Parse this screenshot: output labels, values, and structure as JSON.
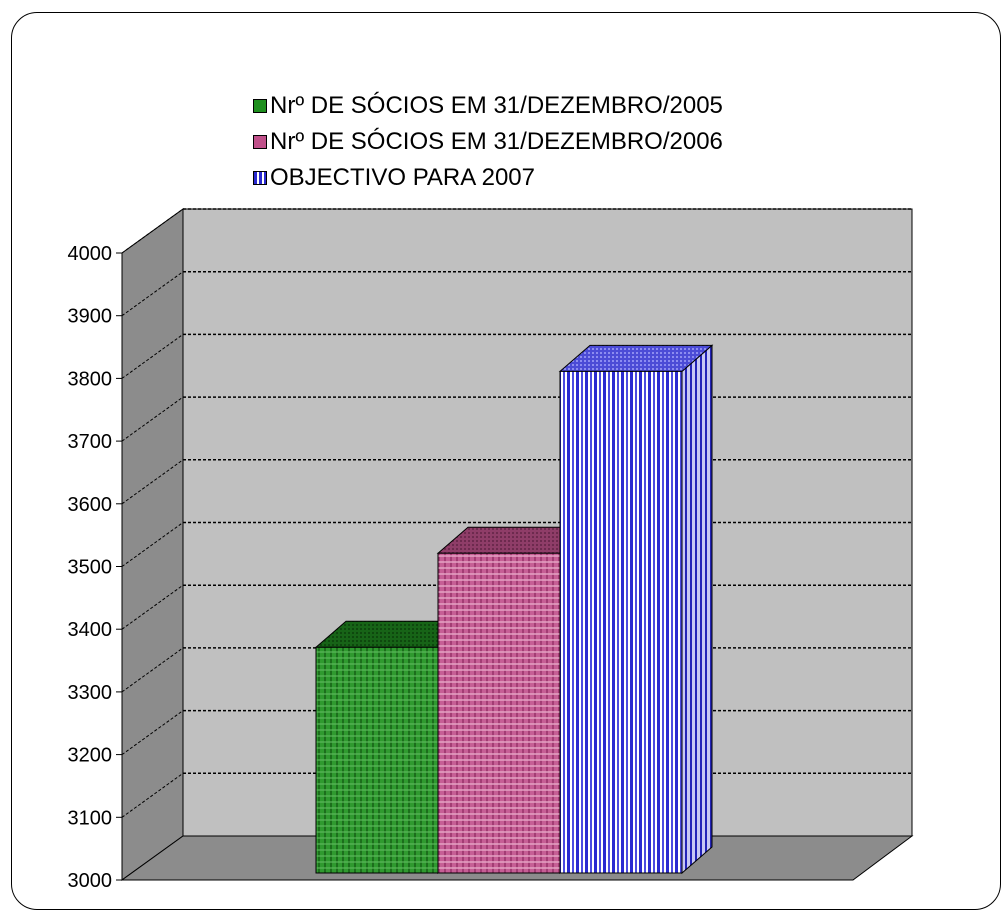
{
  "chart_data": {
    "type": "bar",
    "style": "3d-column",
    "categories": [
      ""
    ],
    "series": [
      {
        "name": "Nrº DE SÓCIOS EM 31/DEZEMBRO/2005",
        "values": [
          3360
        ],
        "color": "#1e8f1e"
      },
      {
        "name": "Nrº DE SÓCIOS EM 31/DEZEMBRO/2006",
        "values": [
          3510
        ],
        "color": "#c0508a"
      },
      {
        "name": "OBJECTIVO PARA 2007",
        "values": [
          3800
        ],
        "color": "#2a2ad0"
      }
    ],
    "ylim": [
      3000,
      4000
    ],
    "yticks": [
      "4000",
      "3900",
      "3800",
      "3700",
      "3600",
      "3500",
      "3400",
      "3300",
      "3200",
      "3100",
      "3000"
    ],
    "grid": true,
    "legend_position": "top"
  }
}
